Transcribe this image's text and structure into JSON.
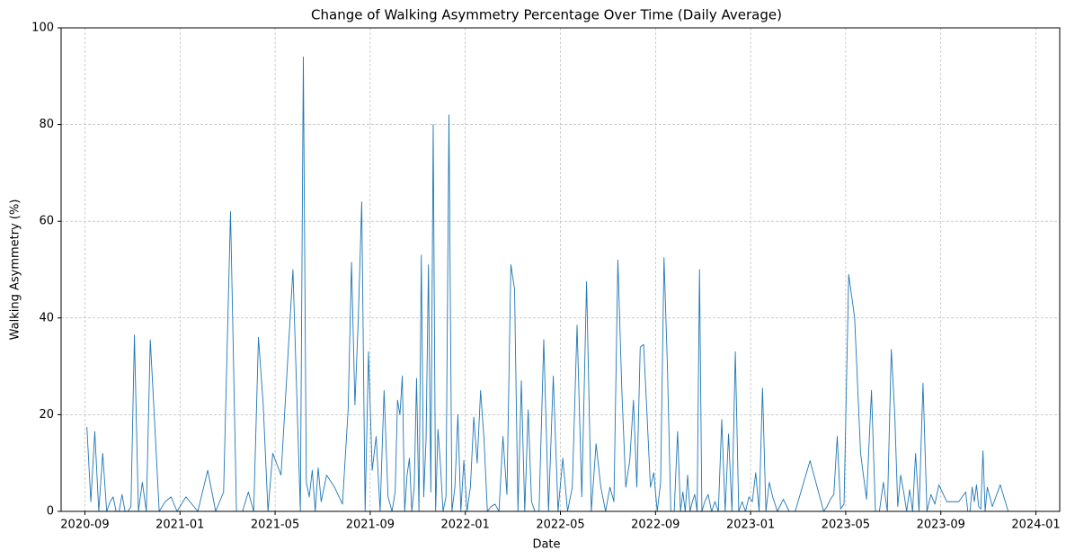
{
  "chart_data": {
    "type": "line",
    "title": "Change of Walking Asymmetry Percentage Over Time (Daily Average)",
    "x_label": "Date",
    "y_label": "Walking Asymmetry (%)",
    "xlim": [
      "2020-08",
      "2024-02"
    ],
    "xticks": [
      "2020-09",
      "2021-01",
      "2021-05",
      "2021-09",
      "2022-01",
      "2022-05",
      "2022-09",
      "2023-01",
      "2023-05",
      "2023-09",
      "2024-01"
    ],
    "ylim": [
      0,
      100
    ],
    "yticks": [
      0,
      20,
      40,
      60,
      80,
      100
    ],
    "grid": true,
    "series": [
      {
        "name": "Walking Asymmetry",
        "color": "#1f77b4",
        "x": [
          "2020-09",
          "2020-09",
          "2020-09",
          "2020-09",
          "2020-09",
          "2020-09",
          "2020-10",
          "2020-10",
          "2020-10",
          "2020-10",
          "2020-10",
          "2020-10",
          "2020-10",
          "2020-10",
          "2020-11",
          "2020-11",
          "2020-11",
          "2020-11",
          "2020-11",
          "2020-11",
          "2020-12",
          "2020-12",
          "2020-12",
          "2020-12",
          "2021-01",
          "2021-01",
          "2021-02",
          "2021-02",
          "2021-02",
          "2021-03",
          "2021-03",
          "2021-03",
          "2021-03",
          "2021-04",
          "2021-04",
          "2021-04",
          "2021-04",
          "2021-04",
          "2021-05",
          "2021-05",
          "2021-06",
          "2021-06",
          "2021-06",
          "2021-06",
          "2021-06",
          "2021-06",
          "2021-06",
          "2021-06",
          "2021-07",
          "2021-07",
          "2021-07",
          "2021-08",
          "2021-08",
          "2021-08",
          "2021-08",
          "2021-08",
          "2021-08",
          "2021-08",
          "2021-09",
          "2021-09",
          "2021-09",
          "2021-09",
          "2021-09",
          "2021-09",
          "2021-10",
          "2021-10",
          "2021-10",
          "2021-10",
          "2021-10",
          "2021-10",
          "2021-10",
          "2021-10",
          "2021-10",
          "2021-10",
          "2021-11",
          "2021-11",
          "2021-11",
          "2021-11",
          "2021-11",
          "2021-11",
          "2021-11",
          "2021-11",
          "2021-11",
          "2021-11",
          "2021-12",
          "2021-12",
          "2021-12",
          "2021-12",
          "2021-12",
          "2021-12",
          "2021-12",
          "2021-12",
          "2022-01",
          "2022-01",
          "2022-01",
          "2022-01",
          "2022-01",
          "2022-01",
          "2022-01",
          "2022-02",
          "2022-02",
          "2022-02",
          "2022-02",
          "2022-02",
          "2022-02",
          "2022-03",
          "2022-03",
          "2022-03",
          "2022-03",
          "2022-03",
          "2022-03",
          "2022-03",
          "2022-04",
          "2022-04",
          "2022-04",
          "2022-04",
          "2022-04",
          "2022-05",
          "2022-05",
          "2022-05",
          "2022-05",
          "2022-05",
          "2022-06",
          "2022-06",
          "2022-06",
          "2022-06",
          "2022-06",
          "2022-07",
          "2022-07",
          "2022-07",
          "2022-07",
          "2022-07",
          "2022-07",
          "2022-08",
          "2022-08",
          "2022-08",
          "2022-08",
          "2022-08",
          "2022-08",
          "2022-08",
          "2022-09",
          "2022-09",
          "2022-09",
          "2022-09",
          "2022-09",
          "2022-09",
          "2022-09",
          "2022-10",
          "2022-10",
          "2022-10",
          "2022-10",
          "2022-10",
          "2022-10",
          "2022-10",
          "2022-10",
          "2022-10",
          "2022-10",
          "2022-11",
          "2022-11",
          "2022-11",
          "2022-11",
          "2022-11",
          "2022-11",
          "2022-11",
          "2022-12",
          "2022-12",
          "2022-12",
          "2022-12",
          "2022-12",
          "2022-12",
          "2022-12",
          "2023-01",
          "2023-01",
          "2023-01",
          "2023-01",
          "2023-01",
          "2023-01",
          "2023-01",
          "2023-02",
          "2023-02",
          "2023-02",
          "2023-02",
          "2023-03",
          "2023-04",
          "2023-04",
          "2023-04",
          "2023-04",
          "2023-04",
          "2023-04",
          "2023-04",
          "2023-05",
          "2023-05",
          "2023-05",
          "2023-05",
          "2023-06",
          "2023-06",
          "2023-06",
          "2023-06",
          "2023-06",
          "2023-06",
          "2023-07",
          "2023-07",
          "2023-07",
          "2023-07",
          "2023-07",
          "2023-07",
          "2023-07",
          "2023-07",
          "2023-08",
          "2023-08",
          "2023-08",
          "2023-08",
          "2023-08",
          "2023-08",
          "2023-09",
          "2023-09",
          "2023-10",
          "2023-10",
          "2023-10",
          "2023-10",
          "2023-10",
          "2023-10",
          "2023-10",
          "2023-10",
          "2023-10",
          "2023-10",
          "2023-10",
          "2023-11",
          "2023-11",
          "2023-11"
        ],
        "values": [
          17.5,
          2,
          16.5,
          0,
          12,
          0,
          2,
          3,
          0,
          0,
          3.5,
          0,
          0,
          1,
          36.5,
          0,
          6,
          0,
          35.5,
          20,
          0,
          2,
          3,
          0,
          3,
          0,
          8.5,
          0,
          4,
          62,
          0,
          0,
          4,
          0,
          36,
          22,
          0,
          12,
          7.5,
          50,
          0,
          94,
          6,
          3,
          8.5,
          0,
          9,
          2,
          7.5,
          5,
          1.5,
          21,
          51.5,
          22,
          40,
          64,
          0,
          33,
          8.5,
          15.5,
          0,
          25,
          3,
          0,
          4,
          23,
          20,
          28,
          0,
          7.5,
          11,
          0,
          5,
          27.5,
          0,
          53,
          3,
          15,
          51,
          4,
          80,
          0,
          17,
          10,
          0,
          3,
          82,
          0,
          5,
          20,
          0,
          10.5,
          0,
          5,
          19.5,
          10,
          25,
          15,
          0,
          1,
          1.5,
          0,
          15.5,
          3.5,
          51,
          46,
          0,
          27,
          0,
          21,
          2,
          0,
          0,
          35.5,
          0,
          28,
          0,
          11,
          0,
          5,
          38.5,
          3,
          47.5,
          0,
          14,
          5,
          0,
          5,
          2,
          52,
          25,
          5,
          10.5,
          23,
          5,
          34,
          34.5,
          20,
          5,
          8,
          0,
          6,
          52.5,
          30,
          0,
          0,
          16.5,
          0,
          4,
          0,
          7.5,
          0,
          2,
          3.5,
          0,
          50,
          0,
          2,
          3.5,
          0,
          2,
          0,
          19,
          0,
          16,
          0,
          33,
          0,
          2,
          0,
          3,
          2,
          8,
          0,
          25.5,
          0,
          6,
          3,
          0,
          2.5,
          0,
          0,
          10.5,
          0,
          1,
          2.5,
          3.5,
          15.5,
          0.5,
          1.5,
          49,
          40,
          12,
          2.5,
          25,
          0,
          0,
          6,
          0,
          33.5,
          20,
          1,
          7.5,
          4,
          0,
          4.5,
          0,
          12,
          0,
          26.5,
          0,
          3.5,
          1.5,
          5.5,
          2,
          2,
          4,
          0,
          0,
          5,
          2,
          5.5,
          1,
          0.5,
          12.5,
          0,
          5,
          1,
          5.5,
          0
        ]
      }
    ]
  }
}
